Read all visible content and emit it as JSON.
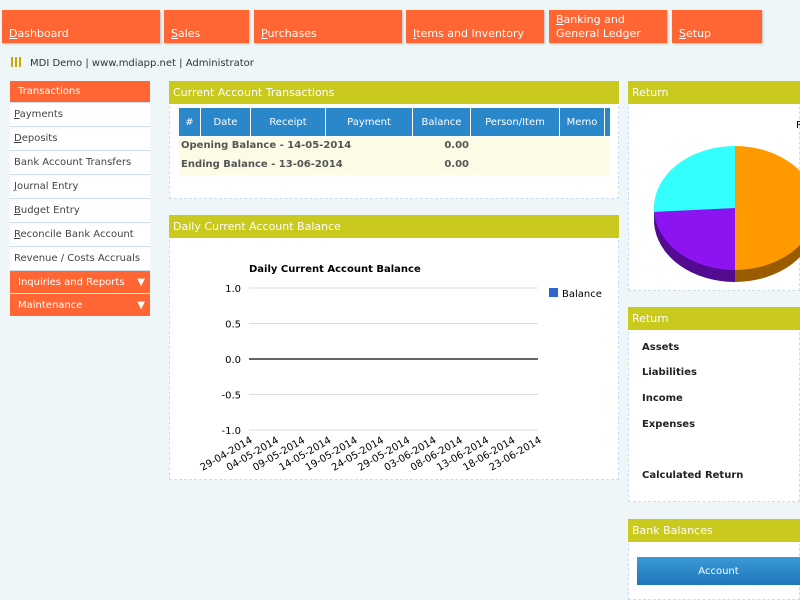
{
  "menu": [
    "Dashboard",
    "Sales",
    "Purchases",
    "Items and Inventory",
    "Banking and General Ledger",
    "Setup"
  ],
  "user_bar": "MDI Demo | www.mdiapp.net | Administrator",
  "sidebar": {
    "items": [
      "Transactions",
      "Payments",
      "Deposits",
      "Bank Account Transfers",
      "Journal Entry",
      "Budget Entry",
      "Reconcile Bank Account",
      "Revenue / Costs Accruals"
    ],
    "sections": [
      "Inquiries and Reports",
      "Maintenance"
    ]
  },
  "transactions": {
    "title": "Current Account Transactions",
    "columns": [
      "#",
      "Date",
      "Receipt",
      "Payment",
      "Balance",
      "Person/Item",
      "Memo"
    ],
    "rows": [
      [
        "Opening Balance - 14-05-2014",
        "0.00"
      ],
      [
        "Ending Balance - 13-06-2014",
        "0.00"
      ]
    ]
  },
  "daily_panel": {
    "title": "Daily Current Account Balance"
  },
  "return_panel": {
    "title": "Return"
  },
  "return_list": {
    "title": "Return",
    "rows": [
      "Assets",
      "Liabilities",
      "Income",
      "Expenses",
      "Calculated Return"
    ]
  },
  "bank_balances": {
    "title": "Bank Balances",
    "button": "Account"
  },
  "chart_data": [
    {
      "type": "line",
      "title": "Daily Current Account Balance",
      "categories": [
        "29-04-2014",
        "04-05-2014",
        "09-05-2014",
        "14-05-2014",
        "19-05-2014",
        "24-05-2014",
        "29-05-2014",
        "03-06-2014",
        "08-06-2014",
        "13-06-2014",
        "18-06-2014",
        "23-06-2014"
      ],
      "series": [
        {
          "name": "Balance",
          "color": "#3366cc",
          "values": [
            0,
            0,
            0,
            0,
            0,
            0,
            0,
            0,
            0,
            0,
            0,
            0
          ]
        }
      ],
      "ylim": [
        -1,
        1
      ],
      "yticks": [
        {
          "value": 1,
          "label": "1.0"
        },
        {
          "value": 0.5,
          "label": "0.5"
        },
        {
          "value": 0,
          "label": "0.0"
        },
        {
          "value": -0.5,
          "label": "-0.5"
        },
        {
          "value": -1,
          "label": "-1.0"
        }
      ],
      "grid": true,
      "legend": "right"
    },
    {
      "type": "pie",
      "title": "R",
      "values": [
        50,
        24,
        26
      ],
      "colors": [
        "#ff9900",
        "#8b14f0",
        "#33ffff"
      ]
    }
  ]
}
